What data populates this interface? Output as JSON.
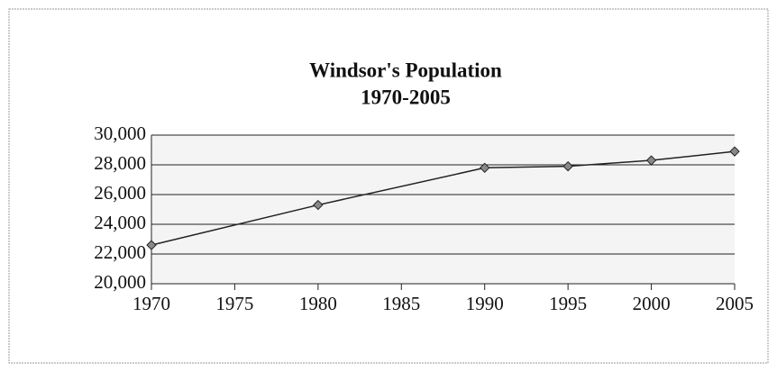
{
  "chart_data": {
    "type": "line",
    "title": "Windsor's Population",
    "subtitle": "1970-2005",
    "x": [
      1970,
      1980,
      1990,
      1995,
      2000,
      2005
    ],
    "series": [
      {
        "name": "Population",
        "color": "#222222",
        "values": [
          22600,
          25300,
          27800,
          27900,
          28300,
          28900
        ]
      }
    ],
    "xlim": [
      1970,
      2005
    ],
    "xticks": [
      1970,
      1975,
      1980,
      1985,
      1990,
      1995,
      2000,
      2005
    ],
    "ylim": [
      20000,
      30000
    ],
    "yticks": [
      {
        "value": 20000,
        "label": "20,000"
      },
      {
        "value": 22000,
        "label": "22,000"
      },
      {
        "value": 24000,
        "label": "24,000"
      },
      {
        "value": 26000,
        "label": "26,000"
      },
      {
        "value": 28000,
        "label": "28,000"
      },
      {
        "value": 30000,
        "label": "30,000"
      }
    ],
    "grid": true
  }
}
